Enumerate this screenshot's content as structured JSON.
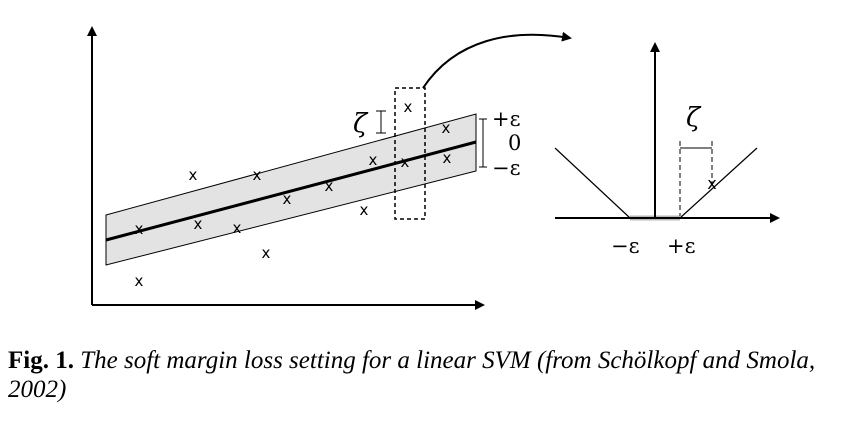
{
  "caption": {
    "label": "Fig. 1.",
    "text": "The soft margin loss setting for a linear SVM (from Schölkopf and Smola, 2002)"
  },
  "left_plot": {
    "zeta_label": "ζ",
    "band_labels": [
      "+ε",
      "0",
      "−ε"
    ],
    "point_marker": "x",
    "point_count": 15
  },
  "right_plot": {
    "zeta_label": "ζ",
    "x_tick_labels": [
      "−ε",
      "+ε"
    ],
    "point_marker": "x"
  },
  "colors": {
    "ink": "#000000",
    "band": "#e3e3e3",
    "insensitive_zone": "#b8b8b8"
  }
}
